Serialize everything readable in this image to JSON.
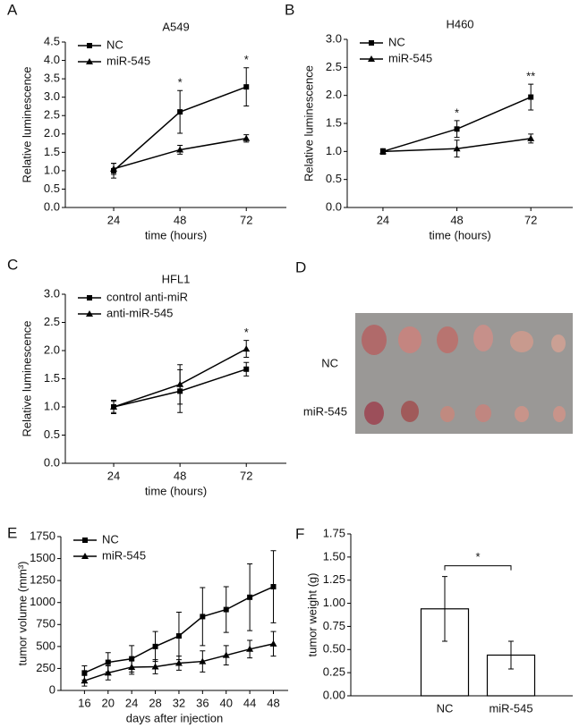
{
  "chart_data": [
    {
      "type": "line",
      "label": "A",
      "title": "A549",
      "x_label": "time (hours)",
      "y_label": "Relative luminescence",
      "x": [
        24,
        48,
        72
      ],
      "xlim": [
        6.5,
        86.5
      ],
      "xticks": [
        24,
        48,
        72
      ],
      "ylim": [
        0,
        4.5
      ],
      "yticks": [
        {
          "value": 0,
          "label": "0.0"
        },
        0.5,
        {
          "value": 1,
          "label": "1.0"
        },
        1.5,
        {
          "value": 2,
          "label": "2.0"
        },
        2.5,
        {
          "value": 3,
          "label": "3.0"
        },
        3.5,
        {
          "value": 4,
          "label": "4.0"
        },
        4.5
      ],
      "legend": "upper left",
      "series": [
        {
          "name": "NC",
          "color": "#000000",
          "marker": "square",
          "values": [
            1.0,
            2.6,
            3.28
          ],
          "errors": [
            0.2,
            0.58,
            0.52
          ]
        },
        {
          "name": "miR-545",
          "color": "#000000",
          "marker": "triangle",
          "values": [
            1.05,
            1.57,
            1.88
          ],
          "errors": [
            0.15,
            0.12,
            0.1
          ]
        }
      ],
      "annotations": [
        {
          "x": 48,
          "text": "*"
        },
        {
          "x": 72,
          "text": "*"
        }
      ]
    },
    {
      "type": "line",
      "label": "B",
      "title": "H460",
      "x_label": "time (hours)",
      "y_label": "Relative luminescence",
      "x": [
        24,
        48,
        72
      ],
      "xlim": [
        12.4,
        85.6
      ],
      "xticks": [
        24,
        48,
        72
      ],
      "ylim": [
        0,
        3
      ],
      "yticks": [
        {
          "value": 0,
          "label": "0.0"
        },
        0.5,
        {
          "value": 1,
          "label": "1.0"
        },
        1.5,
        {
          "value": 2,
          "label": "2.0"
        },
        2.5,
        {
          "value": 3,
          "label": "3.0"
        }
      ],
      "legend": "upper left",
      "series": [
        {
          "name": "NC",
          "color": "#000000",
          "marker": "square",
          "values": [
            1.0,
            1.4,
            1.97
          ],
          "errors": [
            0.05,
            0.15,
            0.23
          ]
        },
        {
          "name": "miR-545",
          "color": "#000000",
          "marker": "triangle",
          "values": [
            1.0,
            1.05,
            1.23
          ],
          "errors": [
            0.03,
            0.15,
            0.08
          ]
        }
      ],
      "annotations": [
        {
          "x": 48,
          "text": "*"
        },
        {
          "x": 72,
          "text": "**"
        }
      ]
    },
    {
      "type": "line",
      "label": "C",
      "title": "HFL1",
      "x_label": "time (hours)",
      "y_label": "Relative luminescence",
      "x": [
        24,
        48,
        72
      ],
      "xlim": [
        6.5,
        86.5
      ],
      "xticks": [
        24,
        48,
        72
      ],
      "ylim": [
        0,
        3
      ],
      "yticks": [
        {
          "value": 0,
          "label": "0.0"
        },
        0.5,
        {
          "value": 1,
          "label": "1.0"
        },
        1.5,
        {
          "value": 2,
          "label": "2.0"
        },
        2.5,
        {
          "value": 3,
          "label": "3.0"
        }
      ],
      "legend": "upper left",
      "series": [
        {
          "name": "control anti-miR",
          "color": "#000000",
          "marker": "square",
          "values": [
            1.0,
            1.28,
            1.67
          ],
          "errors": [
            0.1,
            0.38,
            0.12
          ]
        },
        {
          "name": "anti-miR-545",
          "color": "#000000",
          "marker": "triangle",
          "values": [
            1.0,
            1.4,
            2.03
          ],
          "errors": [
            0.12,
            0.35,
            0.15
          ]
        }
      ],
      "annotations": [
        {
          "x": 72,
          "text": "*"
        }
      ]
    },
    {
      "type": "line",
      "label": "E",
      "x_label": "days after injection",
      "y_label": "tumor volume (mm³)",
      "x": [
        16,
        20,
        24,
        28,
        32,
        36,
        40,
        44,
        48
      ],
      "xlim": [
        12,
        50.5
      ],
      "xticks": [
        16,
        20,
        24,
        28,
        32,
        36,
        40,
        44,
        48
      ],
      "ylim": [
        0,
        1750
      ],
      "yticks": [
        0,
        250,
        500,
        750,
        1000,
        1250,
        1500,
        1750
      ],
      "legend": "upper left",
      "series": [
        {
          "name": "NC",
          "color": "#000000",
          "marker": "square",
          "values": [
            200,
            320,
            360,
            500,
            620,
            840,
            920,
            1060,
            1180
          ],
          "errors": [
            80,
            110,
            150,
            170,
            270,
            330,
            260,
            380,
            410
          ]
        },
        {
          "name": "miR-545",
          "color": "#000000",
          "marker": "triangle",
          "values": [
            110,
            200,
            265,
            270,
            310,
            330,
            400,
            470,
            530
          ],
          "errors": [
            60,
            80,
            80,
            80,
            80,
            120,
            110,
            100,
            140
          ]
        }
      ],
      "annotations": []
    },
    {
      "type": "bar",
      "label": "F",
      "y_label": "tumor weight (g)",
      "categories": [
        "NC",
        "miR-545"
      ],
      "values": [
        0.94,
        0.44
      ],
      "errors": [
        0.35,
        0.15
      ],
      "color": "#ffffff",
      "ylim": [
        0,
        1.75
      ],
      "yticks": [
        {
          "value": 0,
          "label": "0.00"
        },
        0.25,
        {
          "value": 0.5,
          "label": "0.50"
        },
        0.75,
        {
          "value": 1,
          "label": "1.00"
        },
        1.25,
        {
          "value": 1.5,
          "label": "1.50"
        },
        1.75
      ],
      "annotations": [
        {
          "text": "*"
        }
      ]
    }
  ],
  "panel_d": {
    "label": "D",
    "rows": [
      "NC",
      "miR-545"
    ]
  }
}
